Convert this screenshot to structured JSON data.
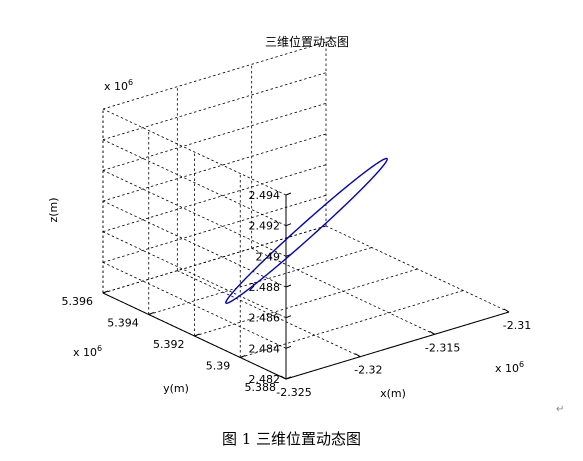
{
  "chart_data": {
    "type": "line",
    "title": "三维位置动态图",
    "xlabel": "x(m)",
    "ylabel": "y(m)",
    "zlabel": "z(m)",
    "exponent_base": "x 10",
    "exponent_power": "6",
    "xlim": [
      -2.325,
      -2.31
    ],
    "ylim": [
      5.388,
      5.396
    ],
    "zlim": [
      2.482,
      2.494
    ],
    "x_ticks": [
      "-2.325",
      "-2.32",
      "-2.315",
      "-2.31"
    ],
    "y_ticks": [
      "5.388",
      "5.39",
      "5.392",
      "5.394",
      "5.396"
    ],
    "z_ticks": [
      "2.482",
      "2.484",
      "2.486",
      "2.488",
      "2.49",
      "2.492",
      "2.494"
    ],
    "grid": true,
    "series": [
      {
        "color": "#0000cc",
        "shape": "closed-ellipse-orbit",
        "x_range": [
          -2.3215,
          -2.3142
        ],
        "y_range": [
          5.3906,
          5.3929
        ],
        "z_range": [
          2.4825,
          2.4914
        ]
      }
    ]
  },
  "caption": "图 1  三维位置动态图",
  "para_mark": "↵"
}
